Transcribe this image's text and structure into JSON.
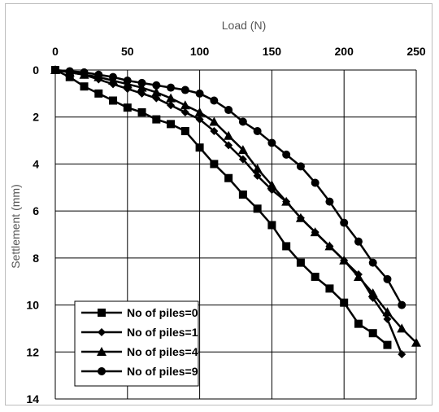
{
  "chart_data": {
    "type": "line",
    "title": "",
    "xlabel": "Load (N)",
    "ylabel": "Settlement (mm)",
    "xlim": [
      0,
      250
    ],
    "ylim": [
      0,
      14
    ],
    "y_inverted": true,
    "x_axis_position": "top",
    "xticks": [
      "0",
      "50",
      "100",
      "150",
      "200",
      "250"
    ],
    "yticks": [
      "0",
      "2",
      "4",
      "6",
      "8",
      "10",
      "12",
      "14"
    ],
    "grid": true,
    "legend_position": "bottom-left",
    "series": [
      {
        "name": "No of piles=0",
        "marker": "square",
        "x": [
          0,
          10,
          20,
          30,
          40,
          50,
          60,
          70,
          80,
          90,
          100,
          110,
          120,
          130,
          140,
          150,
          160,
          170,
          180,
          190,
          200,
          210,
          220,
          230
        ],
        "y": [
          0,
          0.3,
          0.7,
          1.0,
          1.3,
          1.6,
          1.8,
          2.1,
          2.3,
          2.6,
          3.3,
          4.0,
          4.6,
          5.3,
          5.9,
          6.6,
          7.5,
          8.2,
          8.8,
          9.3,
          9.9,
          10.8,
          11.2,
          11.7
        ]
      },
      {
        "name": "No of piles=1",
        "marker": "diamond",
        "x": [
          0,
          10,
          20,
          30,
          40,
          50,
          60,
          70,
          80,
          90,
          100,
          110,
          120,
          130,
          140,
          150,
          160,
          170,
          180,
          190,
          200,
          210,
          220,
          230,
          240
        ],
        "y": [
          0,
          0.1,
          0.2,
          0.4,
          0.6,
          0.8,
          1.0,
          1.2,
          1.5,
          1.8,
          2.1,
          2.6,
          3.2,
          3.8,
          4.5,
          5.1,
          5.6,
          6.3,
          6.9,
          7.5,
          8.1,
          8.7,
          9.7,
          10.6,
          12.1
        ]
      },
      {
        "name": "No of piles=4",
        "marker": "triangle",
        "x": [
          0,
          10,
          20,
          30,
          40,
          50,
          60,
          70,
          80,
          90,
          100,
          110,
          120,
          130,
          140,
          150,
          160,
          170,
          180,
          190,
          200,
          210,
          220,
          230,
          240,
          250
        ],
        "y": [
          0,
          0.1,
          0.2,
          0.3,
          0.45,
          0.6,
          0.75,
          0.95,
          1.2,
          1.5,
          1.8,
          2.2,
          2.8,
          3.4,
          4.2,
          4.9,
          5.6,
          6.3,
          6.9,
          7.5,
          8.1,
          8.8,
          9.5,
          10.3,
          11.0,
          11.6
        ]
      },
      {
        "name": "No of piles=9",
        "marker": "circle",
        "x": [
          0,
          10,
          20,
          30,
          40,
          50,
          60,
          70,
          80,
          90,
          100,
          110,
          120,
          130,
          140,
          150,
          160,
          170,
          180,
          190,
          200,
          210,
          220,
          230,
          240
        ],
        "y": [
          0,
          0.05,
          0.1,
          0.2,
          0.3,
          0.45,
          0.55,
          0.65,
          0.75,
          0.85,
          1.0,
          1.3,
          1.7,
          2.2,
          2.6,
          3.1,
          3.6,
          4.1,
          4.8,
          5.6,
          6.5,
          7.3,
          8.2,
          8.9,
          10.0
        ]
      }
    ]
  }
}
